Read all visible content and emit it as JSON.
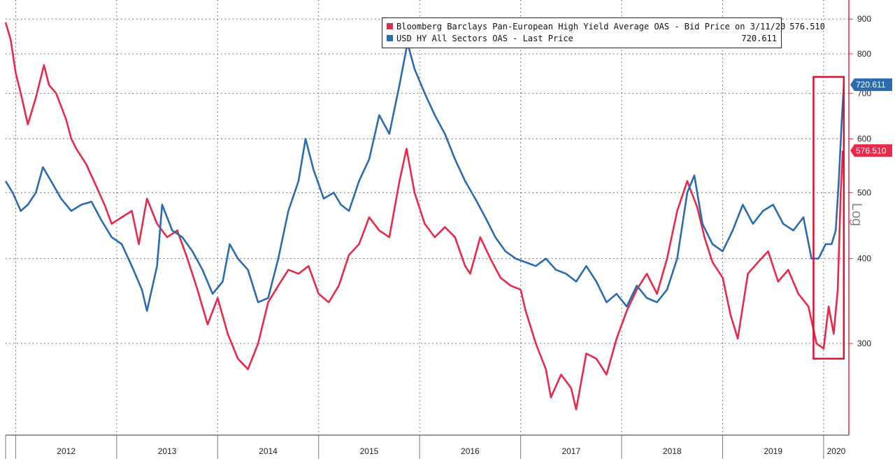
{
  "chart_data": {
    "type": "line",
    "title": "",
    "xlabel": "",
    "ylabel": "",
    "scale": "log",
    "scale_label": "Log",
    "ylim": [
      220,
      960
    ],
    "xlim": [
      2011.9,
      2020.25
    ],
    "y_ticks": [
      300,
      400,
      500,
      600,
      700,
      800,
      900
    ],
    "y_tick_labels": [
      "300",
      "400",
      "500",
      "600",
      "700",
      "800",
      "900"
    ],
    "x_year_labels": [
      "2012",
      "2013",
      "2014",
      "2015",
      "2016",
      "2017",
      "2018",
      "2019",
      "2020"
    ],
    "grid": true,
    "legend_position": "top-center",
    "highlight_box": {
      "x_range": [
        2019.9,
        2020.2
      ],
      "y_range": [
        285,
        740
      ]
    },
    "series": [
      {
        "name": "Bloomberg Barclays Pan-European High Yield Average OAS - Bid Price on 3/11/20",
        "last_value": "576.510",
        "color": "#e8294a",
        "points": [
          [
            2011.9,
            890
          ],
          [
            2011.95,
            840
          ],
          [
            2012.0,
            750
          ],
          [
            2012.05,
            700
          ],
          [
            2012.12,
            630
          ],
          [
            2012.2,
            690
          ],
          [
            2012.28,
            770
          ],
          [
            2012.33,
            720
          ],
          [
            2012.4,
            700
          ],
          [
            2012.5,
            640
          ],
          [
            2012.55,
            600
          ],
          [
            2012.6,
            580
          ],
          [
            2012.7,
            550
          ],
          [
            2012.8,
            510
          ],
          [
            2012.88,
            480
          ],
          [
            2012.95,
            450
          ],
          [
            2013.05,
            460
          ],
          [
            2013.15,
            470
          ],
          [
            2013.22,
            420
          ],
          [
            2013.3,
            490
          ],
          [
            2013.4,
            450
          ],
          [
            2013.5,
            430
          ],
          [
            2013.6,
            440
          ],
          [
            2013.7,
            400
          ],
          [
            2013.8,
            360
          ],
          [
            2013.9,
            320
          ],
          [
            2014.0,
            350
          ],
          [
            2014.1,
            310
          ],
          [
            2014.2,
            285
          ],
          [
            2014.3,
            275
          ],
          [
            2014.4,
            300
          ],
          [
            2014.5,
            345
          ],
          [
            2014.6,
            365
          ],
          [
            2014.7,
            385
          ],
          [
            2014.8,
            380
          ],
          [
            2014.9,
            390
          ],
          [
            2015.0,
            355
          ],
          [
            2015.1,
            345
          ],
          [
            2015.2,
            365
          ],
          [
            2015.3,
            405
          ],
          [
            2015.4,
            420
          ],
          [
            2015.5,
            460
          ],
          [
            2015.6,
            440
          ],
          [
            2015.7,
            430
          ],
          [
            2015.8,
            520
          ],
          [
            2015.87,
            580
          ],
          [
            2015.95,
            500
          ],
          [
            2016.05,
            450
          ],
          [
            2016.15,
            430
          ],
          [
            2016.25,
            445
          ],
          [
            2016.35,
            430
          ],
          [
            2016.45,
            390
          ],
          [
            2016.5,
            380
          ],
          [
            2016.6,
            430
          ],
          [
            2016.7,
            400
          ],
          [
            2016.8,
            375
          ],
          [
            2016.9,
            365
          ],
          [
            2017.0,
            360
          ],
          [
            2017.05,
            335
          ],
          [
            2017.15,
            300
          ],
          [
            2017.25,
            275
          ],
          [
            2017.3,
            250
          ],
          [
            2017.4,
            270
          ],
          [
            2017.5,
            258
          ],
          [
            2017.55,
            240
          ],
          [
            2017.65,
            290
          ],
          [
            2017.75,
            285
          ],
          [
            2017.85,
            270
          ],
          [
            2017.95,
            305
          ],
          [
            2018.05,
            335
          ],
          [
            2018.15,
            360
          ],
          [
            2018.25,
            380
          ],
          [
            2018.35,
            355
          ],
          [
            2018.45,
            400
          ],
          [
            2018.55,
            470
          ],
          [
            2018.65,
            520
          ],
          [
            2018.75,
            475
          ],
          [
            2018.82,
            430
          ],
          [
            2018.9,
            395
          ],
          [
            2019.0,
            375
          ],
          [
            2019.08,
            330
          ],
          [
            2019.15,
            305
          ],
          [
            2019.25,
            380
          ],
          [
            2019.35,
            395
          ],
          [
            2019.45,
            410
          ],
          [
            2019.55,
            370
          ],
          [
            2019.65,
            385
          ],
          [
            2019.75,
            355
          ],
          [
            2019.85,
            340
          ],
          [
            2019.93,
            300
          ],
          [
            2020.0,
            295
          ],
          [
            2020.05,
            340
          ],
          [
            2020.1,
            310
          ],
          [
            2020.14,
            360
          ],
          [
            2020.17,
            500
          ],
          [
            2020.19,
            576.51
          ]
        ]
      },
      {
        "name": "USD HY All Sectors OAS - Last Price",
        "last_value": "720.611",
        "color": "#2b6cb0",
        "points": [
          [
            2011.9,
            520
          ],
          [
            2011.97,
            500
          ],
          [
            2012.05,
            470
          ],
          [
            2012.12,
            480
          ],
          [
            2012.2,
            500
          ],
          [
            2012.27,
            545
          ],
          [
            2012.35,
            520
          ],
          [
            2012.45,
            490
          ],
          [
            2012.55,
            470
          ],
          [
            2012.65,
            480
          ],
          [
            2012.75,
            485
          ],
          [
            2012.85,
            455
          ],
          [
            2012.95,
            430
          ],
          [
            2013.05,
            420
          ],
          [
            2013.15,
            390
          ],
          [
            2013.25,
            360
          ],
          [
            2013.3,
            335
          ],
          [
            2013.4,
            390
          ],
          [
            2013.45,
            480
          ],
          [
            2013.55,
            440
          ],
          [
            2013.65,
            430
          ],
          [
            2013.75,
            410
          ],
          [
            2013.85,
            385
          ],
          [
            2013.95,
            355
          ],
          [
            2014.05,
            370
          ],
          [
            2014.12,
            420
          ],
          [
            2014.2,
            400
          ],
          [
            2014.3,
            385
          ],
          [
            2014.4,
            345
          ],
          [
            2014.5,
            350
          ],
          [
            2014.6,
            400
          ],
          [
            2014.7,
            470
          ],
          [
            2014.8,
            520
          ],
          [
            2014.87,
            600
          ],
          [
            2014.95,
            540
          ],
          [
            2015.05,
            490
          ],
          [
            2015.15,
            500
          ],
          [
            2015.22,
            480
          ],
          [
            2015.3,
            470
          ],
          [
            2015.4,
            520
          ],
          [
            2015.5,
            560
          ],
          [
            2015.6,
            650
          ],
          [
            2015.7,
            610
          ],
          [
            2015.8,
            720
          ],
          [
            2015.88,
            830
          ],
          [
            2015.95,
            760
          ],
          [
            2016.05,
            700
          ],
          [
            2016.15,
            650
          ],
          [
            2016.25,
            610
          ],
          [
            2016.35,
            560
          ],
          [
            2016.45,
            520
          ],
          [
            2016.55,
            490
          ],
          [
            2016.65,
            460
          ],
          [
            2016.75,
            430
          ],
          [
            2016.85,
            410
          ],
          [
            2016.95,
            400
          ],
          [
            2017.05,
            395
          ],
          [
            2017.15,
            390
          ],
          [
            2017.25,
            400
          ],
          [
            2017.35,
            385
          ],
          [
            2017.45,
            380
          ],
          [
            2017.55,
            370
          ],
          [
            2017.65,
            390
          ],
          [
            2017.75,
            370
          ],
          [
            2017.85,
            345
          ],
          [
            2017.95,
            355
          ],
          [
            2018.05,
            340
          ],
          [
            2018.15,
            365
          ],
          [
            2018.25,
            350
          ],
          [
            2018.35,
            345
          ],
          [
            2018.45,
            360
          ],
          [
            2018.55,
            400
          ],
          [
            2018.65,
            500
          ],
          [
            2018.72,
            530
          ],
          [
            2018.8,
            450
          ],
          [
            2018.9,
            420
          ],
          [
            2019.0,
            410
          ],
          [
            2019.1,
            440
          ],
          [
            2019.2,
            480
          ],
          [
            2019.3,
            450
          ],
          [
            2019.4,
            470
          ],
          [
            2019.5,
            480
          ],
          [
            2019.6,
            450
          ],
          [
            2019.7,
            440
          ],
          [
            2019.8,
            460
          ],
          [
            2019.88,
            400
          ],
          [
            2019.95,
            400
          ],
          [
            2020.02,
            420
          ],
          [
            2020.08,
            420
          ],
          [
            2020.12,
            440
          ],
          [
            2020.15,
            520
          ],
          [
            2020.18,
            640
          ],
          [
            2020.2,
            720.611
          ]
        ]
      }
    ]
  }
}
